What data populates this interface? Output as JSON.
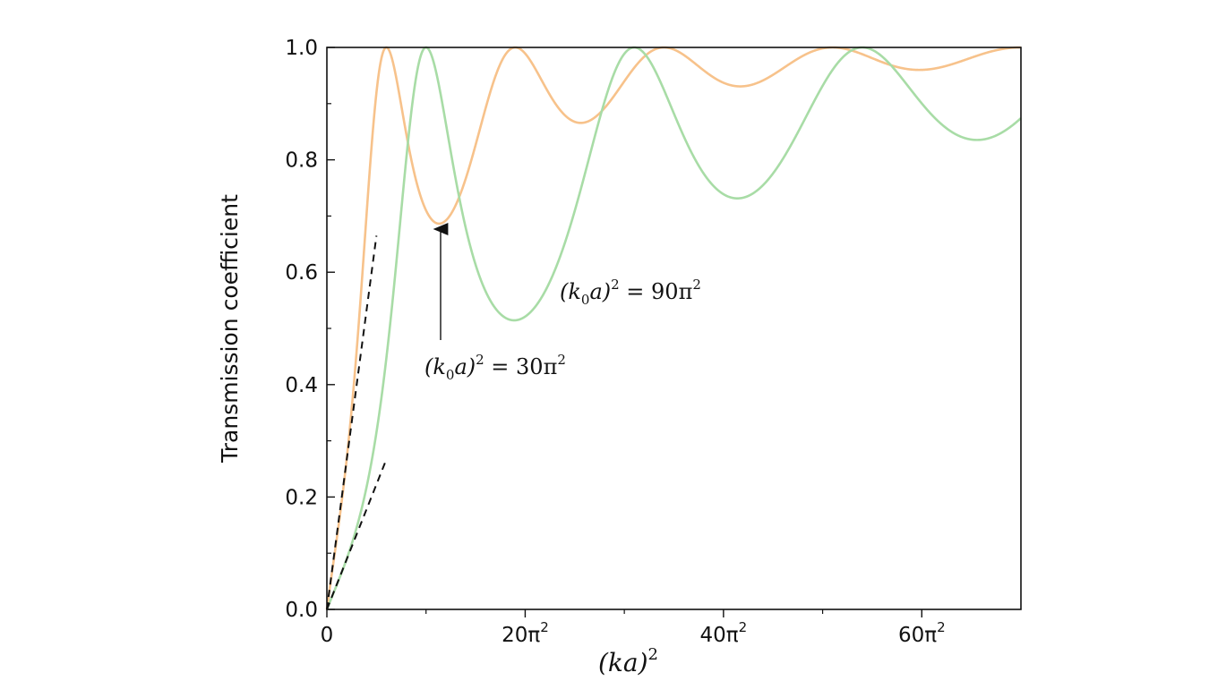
{
  "chart_data": {
    "type": "line",
    "ylabel": "Transmission coefficient",
    "xlabel": "(ka)",
    "xlabel_superscript": "2",
    "xlim_pi2": [
      0,
      70
    ],
    "ylim": [
      0,
      1.0
    ],
    "x_unit": "π²",
    "x_ticks": [
      {
        "value_pi2": 0,
        "base": "0",
        "sup": ""
      },
      {
        "value_pi2": 20,
        "base": "20π",
        "sup": "2"
      },
      {
        "value_pi2": 40,
        "base": "40π",
        "sup": "2"
      },
      {
        "value_pi2": 60,
        "base": "60π",
        "sup": "2"
      }
    ],
    "y_ticks": [
      {
        "value": 0.0,
        "label": "0.0"
      },
      {
        "value": 0.2,
        "label": "0.2"
      },
      {
        "value": 0.4,
        "label": "0.4"
      },
      {
        "value": 0.6,
        "label": "0.6"
      },
      {
        "value": 0.8,
        "label": "0.8"
      },
      {
        "value": 1.0,
        "label": "1.0"
      }
    ],
    "grid": false,
    "series": [
      {
        "k0a2_pi2": 30,
        "color": "#f7c28b",
        "style": "solid"
      },
      {
        "k0a2_pi2": 90,
        "color": "#a8dca6",
        "style": "solid"
      }
    ],
    "asymptotes": [
      {
        "slope_per_pi2": 0.133,
        "x_end_pi2": 5,
        "color": "#111111",
        "style": "dashed"
      },
      {
        "slope_per_pi2": 0.0445,
        "x_end_pi2": 6,
        "color": "#111111",
        "style": "dashed"
      }
    ],
    "annotations": [
      {
        "id": "label30",
        "text_parts": [
          "(k",
          "0",
          "a)",
          "2",
          " = 30π",
          "2"
        ],
        "points_to_pi2": 11.3
      },
      {
        "id": "label90",
        "text_parts": [
          "(k",
          "0",
          "a)",
          "2",
          " = 90π",
          "2"
        ]
      }
    ]
  }
}
